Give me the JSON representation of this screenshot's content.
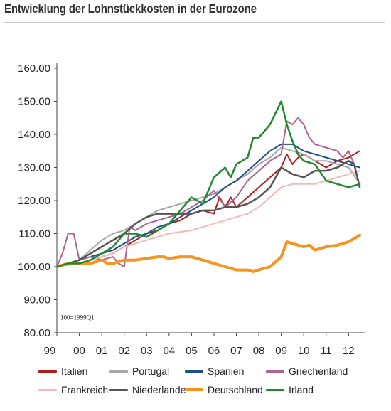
{
  "page": {
    "title": "Entwicklung der Lohnstückkosten in der Eurozone"
  },
  "chart_data": {
    "type": "line",
    "title": "Entwicklung der Lohnstückkosten in der Eurozone",
    "note": "100=1999Q1",
    "xlabel": "",
    "ylabel": "",
    "xlim": [
      1999.0,
      2012.75
    ],
    "ylim": [
      80,
      160
    ],
    "x_tick_values": [
      1999,
      2000,
      2001,
      2002,
      2003,
      2004,
      2005,
      2006,
      2007,
      2008,
      2009,
      2010,
      2011,
      2012
    ],
    "x_tick_labels": [
      "99",
      "00",
      "01",
      "02",
      "03",
      "04",
      "05",
      "06",
      "07",
      "08",
      "09",
      "10",
      "11",
      "12"
    ],
    "y_tick_values": [
      80,
      90,
      100,
      110,
      120,
      130,
      140,
      150,
      160
    ],
    "y_tick_labels": [
      "80.00",
      "90.00",
      "100.00",
      "110.00",
      "120.00",
      "130.00",
      "140.00",
      "150.00",
      "160.00"
    ],
    "grid": false,
    "legend_position": "bottom",
    "series": [
      {
        "name": "Italien",
        "color": "#b31b1b",
        "width": 2,
        "x": [
          1999.0,
          1999.5,
          2000.0,
          2000.5,
          2001.0,
          2001.5,
          2002.0,
          2002.5,
          2003.0,
          2003.5,
          2004.0,
          2004.5,
          2005.0,
          2005.5,
          2006.0,
          2006.25,
          2006.5,
          2006.75,
          2007.0,
          2007.5,
          2008.0,
          2008.5,
          2009.0,
          2009.25,
          2009.5,
          2009.75,
          2010.0,
          2010.5,
          2011.0,
          2011.5,
          2012.0,
          2012.5
        ],
        "y": [
          100,
          101,
          101,
          102,
          103,
          104,
          106,
          108,
          110,
          111,
          113,
          114,
          116,
          117,
          116,
          121,
          118,
          121,
          118,
          121,
          124,
          127,
          130,
          134,
          131,
          133,
          134,
          132,
          130,
          132,
          133,
          135
        ]
      },
      {
        "name": "Portugal",
        "color": "#a6a6a6",
        "width": 2,
        "x": [
          1999.0,
          1999.5,
          2000.0,
          2000.5,
          2001.0,
          2001.5,
          2002.0,
          2002.5,
          2003.0,
          2003.5,
          2004.0,
          2004.5,
          2005.0,
          2005.5,
          2006.0,
          2006.5,
          2007.0,
          2007.5,
          2008.0,
          2008.5,
          2009.0,
          2009.5,
          2010.0,
          2010.5,
          2011.0,
          2011.5,
          2012.0,
          2012.4
        ],
        "y": [
          100,
          101,
          102,
          105,
          108,
          110,
          111,
          113,
          115,
          117,
          118,
          119,
          120,
          121,
          122,
          124,
          126,
          128,
          131,
          133,
          136,
          135,
          134,
          132,
          132,
          131,
          130,
          126
        ]
      },
      {
        "name": "Spanien",
        "color": "#1f4e8c",
        "width": 2,
        "x": [
          1999.0,
          1999.5,
          2000.0,
          2000.5,
          2001.0,
          2001.5,
          2002.0,
          2002.5,
          2003.0,
          2003.5,
          2004.0,
          2004.5,
          2005.0,
          2005.5,
          2006.0,
          2006.5,
          2007.0,
          2007.5,
          2008.0,
          2008.5,
          2009.0,
          2009.5,
          2010.0,
          2010.5,
          2011.0,
          2011.5,
          2012.0,
          2012.5
        ],
        "y": [
          100,
          101,
          102,
          103,
          104,
          105,
          107,
          109,
          110,
          112,
          113,
          115,
          117,
          119,
          121,
          124,
          126,
          129,
          132,
          135,
          137,
          137,
          135,
          134,
          133,
          132,
          131,
          130
        ]
      },
      {
        "name": "Griechenland",
        "color": "#b0628f",
        "width": 2,
        "x": [
          1999.0,
          1999.25,
          1999.5,
          1999.75,
          2000.0,
          2000.5,
          2001.0,
          2001.5,
          2001.75,
          2002.0,
          2002.25,
          2002.5,
          2003.0,
          2003.5,
          2004.0,
          2004.5,
          2005.0,
          2005.5,
          2006.0,
          2006.5,
          2007.0,
          2007.5,
          2008.0,
          2008.5,
          2009.0,
          2009.25,
          2009.5,
          2009.75,
          2010.0,
          2010.25,
          2010.5,
          2011.0,
          2011.5,
          2011.75,
          2012.0,
          2012.25,
          2012.5
        ],
        "y": [
          100,
          104,
          110,
          110,
          102,
          103,
          102,
          103,
          101,
          100,
          112,
          111,
          113,
          114,
          115,
          116,
          118,
          120,
          123,
          118,
          121,
          126,
          129,
          132,
          134,
          144,
          143,
          145,
          143,
          139,
          137,
          136,
          135,
          133,
          135,
          131,
          124
        ]
      },
      {
        "name": "Frankreich",
        "color": "#f1b8b5",
        "width": 2,
        "x": [
          1999.0,
          1999.5,
          2000.0,
          2000.5,
          2001.0,
          2001.5,
          2002.0,
          2002.5,
          2003.0,
          2003.5,
          2004.0,
          2004.5,
          2005.0,
          2005.5,
          2006.0,
          2006.5,
          2007.0,
          2007.5,
          2008.0,
          2008.5,
          2009.0,
          2009.5,
          2010.0,
          2010.5,
          2011.0,
          2011.5,
          2012.0,
          2012.5
        ],
        "y": [
          100,
          100.5,
          101,
          102,
          103,
          104,
          106,
          107,
          108,
          109,
          110,
          110.5,
          111,
          112,
          113,
          114,
          115,
          116,
          118,
          121,
          124,
          125,
          125,
          125,
          126,
          127,
          128,
          129
        ]
      },
      {
        "name": "Niederlande",
        "color": "#555555",
        "width": 2.5,
        "x": [
          1999.0,
          1999.5,
          2000.0,
          2000.5,
          2001.0,
          2001.5,
          2002.0,
          2002.5,
          2003.0,
          2003.5,
          2004.0,
          2004.5,
          2005.0,
          2005.5,
          2006.0,
          2006.5,
          2007.0,
          2007.5,
          2008.0,
          2008.5,
          2009.0,
          2009.5,
          2010.0,
          2010.5,
          2011.0,
          2011.5,
          2012.0,
          2012.25,
          2012.5
        ],
        "y": [
          100,
          101,
          102,
          104,
          106,
          108,
          110,
          113,
          115,
          116,
          116,
          116,
          116,
          117,
          117,
          118,
          118,
          119,
          121,
          124,
          130,
          128,
          127,
          129,
          129,
          130,
          132,
          131,
          124
        ]
      },
      {
        "name": "Deutschland",
        "color": "#f7941d",
        "width": 4,
        "x": [
          1999.0,
          1999.5,
          2000.0,
          2000.5,
          2001.0,
          2001.25,
          2001.5,
          2002.0,
          2002.5,
          2003.0,
          2003.5,
          2003.75,
          2004.0,
          2004.5,
          2005.0,
          2005.5,
          2006.0,
          2006.5,
          2007.0,
          2007.5,
          2007.75,
          2008.0,
          2008.5,
          2009.0,
          2009.25,
          2009.5,
          2010.0,
          2010.25,
          2010.5,
          2011.0,
          2011.5,
          2012.0,
          2012.5
        ],
        "y": [
          100,
          101,
          101,
          101,
          102,
          101,
          101,
          102,
          102,
          102.5,
          103,
          103,
          102.5,
          103,
          103,
          102,
          101,
          100,
          99,
          99,
          98.5,
          99,
          100,
          103,
          107.5,
          107,
          106,
          106.5,
          105,
          106,
          106.5,
          107.5,
          109.5
        ]
      },
      {
        "name": "Irland",
        "color": "#1e8a2e",
        "width": 2.5,
        "x": [
          1999.0,
          1999.5,
          2000.0,
          2000.5,
          2001.0,
          2001.5,
          2002.0,
          2002.5,
          2003.0,
          2003.5,
          2004.0,
          2004.5,
          2005.0,
          2005.5,
          2006.0,
          2006.5,
          2006.75,
          2007.0,
          2007.5,
          2007.75,
          2008.0,
          2008.5,
          2009.0,
          2009.25,
          2009.5,
          2009.75,
          2010.0,
          2010.5,
          2011.0,
          2011.5,
          2012.0,
          2012.5
        ],
        "y": [
          100,
          101,
          101,
          102,
          104,
          106,
          110,
          110,
          109,
          111,
          113,
          117,
          121,
          119,
          127,
          130,
          127,
          131,
          133,
          139,
          139,
          143,
          150,
          143,
          138,
          134,
          132,
          131,
          126,
          125,
          124,
          125
        ]
      }
    ]
  }
}
